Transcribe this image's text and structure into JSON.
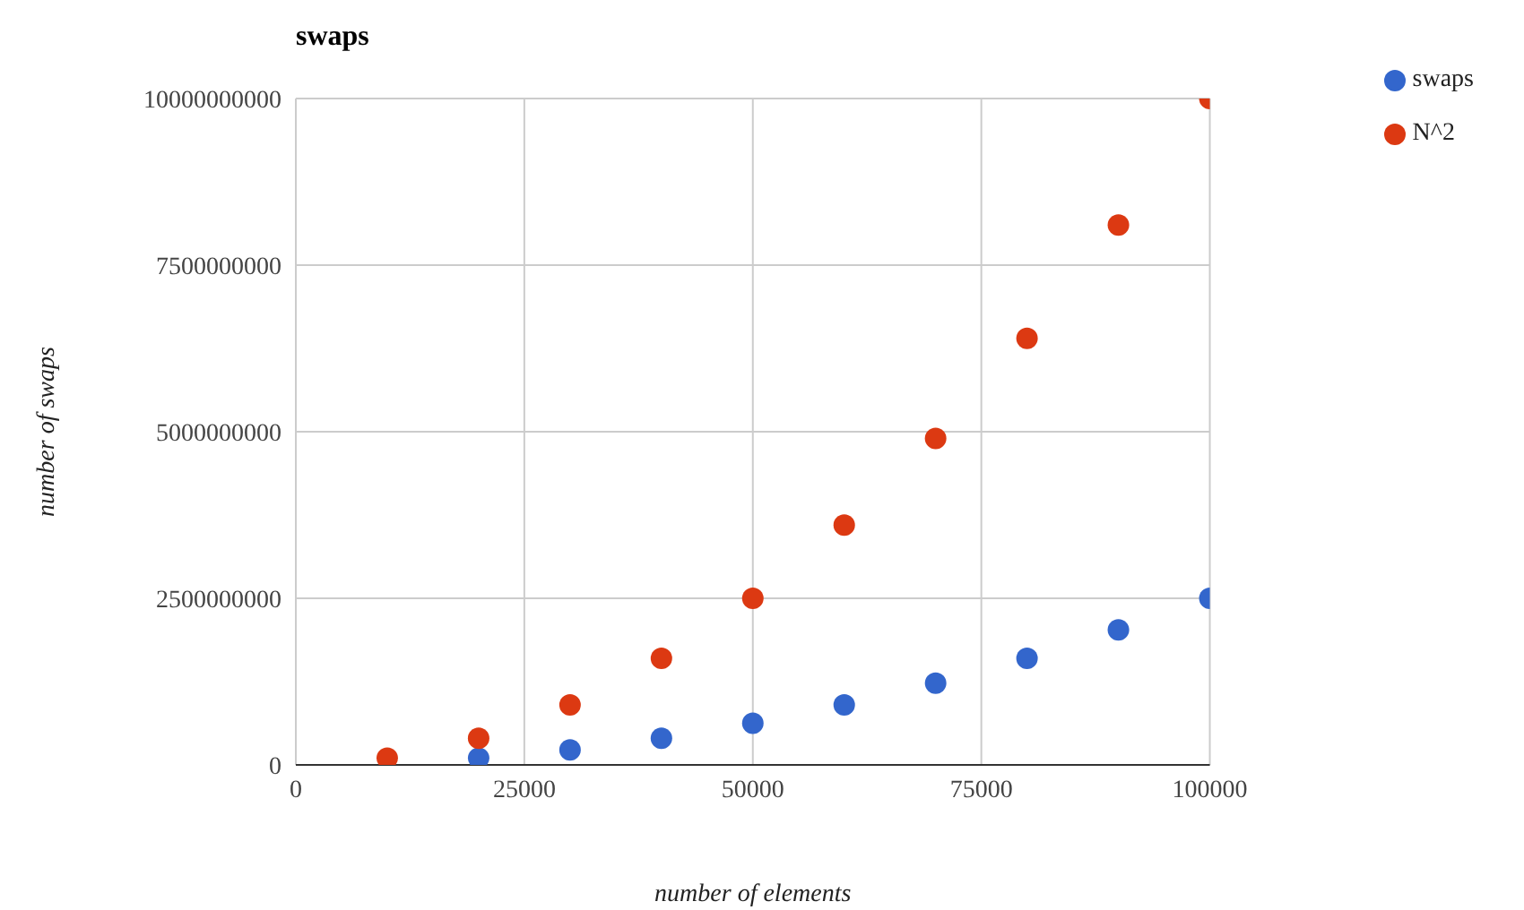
{
  "chart_data": {
    "type": "scatter",
    "title": "swaps",
    "xlabel": "number of elements",
    "ylabel": "number of swaps",
    "x": [
      10000,
      20000,
      30000,
      40000,
      50000,
      60000,
      70000,
      80000,
      90000,
      100000
    ],
    "series": [
      {
        "name": "swaps",
        "color": "#3366cc",
        "values": [
          null,
          100000000,
          225000000,
          400000000,
          625000000,
          900000000,
          1225000000,
          1600000000,
          2025000000,
          2500000000
        ]
      },
      {
        "name": "N^2",
        "color": "#dc3912",
        "values": [
          100000000,
          400000000,
          900000000,
          1600000000,
          2500000000,
          3600000000,
          4900000000,
          6400000000,
          8100000000,
          10000000000
        ]
      }
    ],
    "xlim": [
      0,
      100000
    ],
    "xticks": [
      0,
      25000,
      50000,
      75000,
      100000
    ],
    "ylim": [
      0,
      10000000000
    ],
    "yticks": [
      0,
      2500000000,
      5000000000,
      7500000000,
      10000000000
    ],
    "grid": true,
    "legend": "top right",
    "marker": "circle"
  }
}
